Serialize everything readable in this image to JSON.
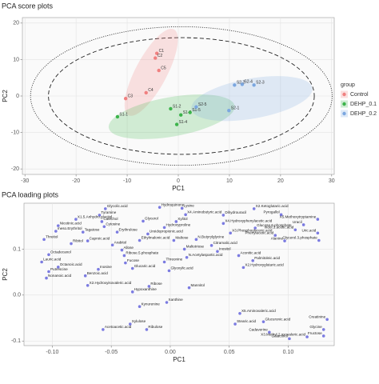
{
  "chart_data": [
    {
      "type": "scatter",
      "title": "PCA score plots",
      "x_label": "PC1",
      "y_label": "PC2",
      "xlim": [
        -30.5,
        30.5
      ],
      "ylim": [
        -21.5,
        21.5
      ],
      "xticks": [
        -30,
        -20,
        -10,
        0,
        10,
        20,
        30
      ],
      "yticks": [
        -20,
        -10,
        0,
        10,
        20
      ],
      "grid": true,
      "legend": "right",
      "legend_title": "group",
      "reference_ellipses": [
        {
          "center": [
            0.6,
            0
          ],
          "radii": [
            26,
            16
          ],
          "style": "dashed"
        },
        {
          "center": [
            0.6,
            0
          ],
          "radii": [
            29.5,
            19
          ],
          "style": "dotted"
        }
      ],
      "series": [
        {
          "name": "Control",
          "color": "#f08080",
          "labels": [
            "C1",
            "C2",
            "C5",
            "C4",
            "C3"
          ],
          "x": [
            -4.2,
            -4.5,
            -3.8,
            -6.3,
            -10.3
          ],
          "values": [
            11.7,
            10.4,
            7.0,
            0.9,
            -0.7
          ],
          "ellipse": {
            "center": [
              -5.3,
              6.5
            ],
            "radii": [
              9.5,
              4.3
            ],
            "angle": -62
          }
        },
        {
          "name": "DEHP_0.1",
          "color": "#3cb44b",
          "labels": [
            "S1-1",
            "S1-2",
            "S1-3",
            "S1-4",
            "S1-5"
          ],
          "x": [
            -11.9,
            -1.5,
            0.5,
            -0.3,
            2.3
          ],
          "values": [
            -5.7,
            -3.5,
            -5.2,
            -7.8,
            -4.5
          ],
          "ellipse": {
            "center": [
              -1.3,
              -5.7
            ],
            "radii": [
              12.5,
              5.4
            ],
            "angle": -10
          }
        },
        {
          "name": "DEHP_0.2",
          "color": "#7ba7e0",
          "labels": [
            "S2-1",
            "S2-2",
            "S2-3",
            "S2-4",
            "S2-5"
          ],
          "x": [
            9.9,
            11.0,
            14.8,
            12.5,
            3.5
          ],
          "values": [
            -4.0,
            3.0,
            3.0,
            3.2,
            -3.0
          ],
          "ellipse": {
            "center": [
              14.4,
              -0.7
            ],
            "radii": [
              12,
              5.5
            ],
            "angle": -10
          }
        }
      ]
    },
    {
      "type": "scatter",
      "title": "PCA loading plots",
      "x_label": "PC1",
      "y_label": "PC2",
      "xlim": [
        -0.124,
        0.139
      ],
      "ylim": [
        -0.11,
        0.2
      ],
      "xticks": [
        {
          "value": -0.1,
          "label": "-0.10"
        },
        -0.05,
        {
          "value": 0,
          "label": "0.00"
        },
        0.05,
        {
          "value": 0.1,
          "label": "0.10"
        }
      ],
      "yticks": [
        -0.1,
        {
          "value": 0,
          "label": "0.0"
        },
        0.1
      ],
      "grid": true,
      "color": "#5b5bdb",
      "points": {
        "labels": [
          "Glycolic.acid",
          "Hydroquinone",
          "Lysine",
          "X2.Ketoglutaric.acid",
          "Pyrogallol",
          "X5.Methoxytryptamine",
          "Tyramine",
          "X4.Aminobutyric.acid",
          "Dihydrouracil",
          "Uracil",
          "Catechol",
          "Glycerol",
          "Xylitol",
          "X1.5.Anhydro.glucitol",
          "Nicotinic.acid",
          "Cytosine",
          "Hydroxyproline",
          "Indol.3.acetic.acid",
          "Glucose.6.phosphate",
          "X4.Hydroxyphenylacetic.acid",
          "meso.Erythritol",
          "Tagatose",
          "Erythrulose",
          "Threitol",
          "Phenylacetic.acid",
          "Alanine",
          "X3.Phosphoglyceric.acid",
          "Ureidopropionic.acid",
          "Ribitol",
          "Caproic.acid",
          "Ethylmalonic.acid",
          "Maltose",
          "N.Butyrylglycine",
          "Citramalic.acid",
          "Arabitol",
          "Allose",
          "Maltotriose",
          "Octadecanol",
          "Lauric.acid",
          "Ribose.5.phosphate",
          "Fucose",
          "Threonine",
          "N.Acetylaspartic.acid",
          "Inositol",
          "Aconitic.acid",
          "Palmitoleic.acid",
          "Putrescine",
          "Octanoic.acid",
          "Inosine",
          "Glucaric.acid",
          "Nonanoic.acid",
          "Benzoic.acid",
          "Glyoxylic.acid",
          "X2.Hydroxyglutaric.acid",
          "X2.Hydroxyisovaleric.acid",
          "Hypoxanthine",
          "Ribose",
          "Mannitol",
          "Kynurenine",
          "Xanthine",
          "Stearic.acid",
          "Glucuronic.acid",
          "Cadaverine",
          "Galactinol",
          "X3.Methyl.2.oxovaleric.acid",
          "Fructose",
          "Glycine",
          "Creatinine",
          "Acetoacetic.acid",
          "Xylulose",
          "Ribulose",
          "X5.Aminovaleric.acid",
          "Uric.acid",
          "Glycerol.3.phosphate"
        ],
        "x": [
          -0.055,
          -0.009,
          0.01,
          0.071,
          0.094,
          0.125,
          -0.06,
          0.013,
          0.045,
          0.113,
          -0.058,
          -0.023,
          0.005,
          -0.08,
          -0.095,
          -0.056,
          -0.005,
          0.106,
          0.072,
          0.045,
          -0.097,
          -0.074,
          -0.045,
          -0.107,
          0.089,
          0.097,
          0.051,
          -0.019,
          -0.084,
          -0.07,
          -0.026,
          0.003,
          0.022,
          0.035,
          -0.049,
          -0.041,
          0.012,
          -0.103,
          -0.109,
          -0.039,
          -0.038,
          -0.005,
          0.014,
          0.04,
          0.058,
          0.07,
          -0.103,
          -0.095,
          -0.061,
          -0.032,
          -0.105,
          -0.072,
          -0.001,
          0.062,
          -0.07,
          -0.032,
          -0.018,
          0.016,
          -0.026,
          -0.003,
          0.055,
          0.079,
          0.084,
          0.101,
          0.116,
          0.13,
          0.13,
          0.133,
          -0.057,
          -0.034,
          -0.02,
          0.059,
          0.125,
          0.126
        ],
        "values": [
          0.188,
          0.191,
          0.189,
          0.188,
          0.175,
          0.165,
          0.174,
          0.175,
          0.174,
          0.153,
          0.16,
          0.161,
          0.16,
          0.165,
          0.151,
          0.149,
          0.147,
          0.142,
          0.146,
          0.156,
          0.139,
          0.137,
          0.137,
          0.121,
          0.13,
          0.118,
          0.135,
          0.133,
          0.112,
          0.118,
          0.119,
          0.119,
          0.121,
          0.108,
          0.109,
          0.098,
          0.1,
          0.088,
          0.072,
          0.086,
          0.07,
          0.072,
          0.082,
          0.095,
          0.086,
          0.075,
          0.051,
          0.061,
          0.056,
          0.058,
          0.037,
          0.042,
          0.053,
          0.06,
          0.021,
          0.007,
          0.019,
          0.016,
          -0.025,
          -0.016,
          -0.063,
          -0.058,
          -0.081,
          -0.095,
          -0.091,
          -0.089,
          -0.075,
          -0.053,
          -0.075,
          -0.063,
          -0.075,
          -0.04,
          0.135,
          0.119
        ]
      }
    }
  ]
}
